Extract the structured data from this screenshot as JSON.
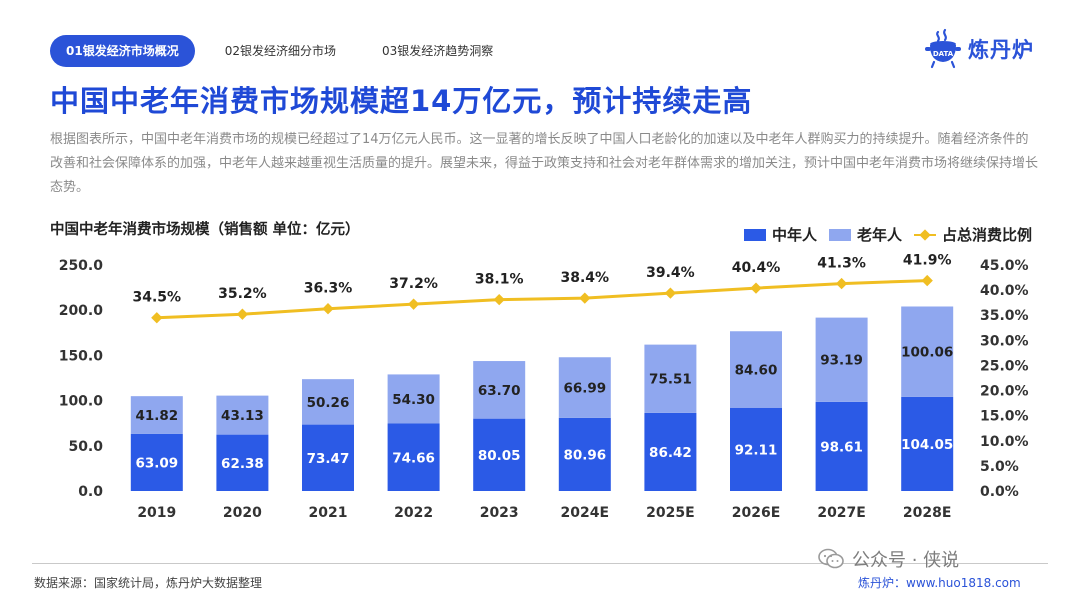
{
  "tabs": [
    {
      "label": "01银发经济市场概况",
      "active": true
    },
    {
      "label": "02银发经济细分市场",
      "active": false
    },
    {
      "label": "03银发经济趋势洞察",
      "active": false
    }
  ],
  "logo": {
    "badge": "DATA",
    "text": "炼丹炉"
  },
  "title": "中国中老年消费市场规模超14万亿元，预计持续走高",
  "description": "根据图表所示，中国中老年消费市场的规模已经超过了14万亿元人民币。这一显著的增长反映了中国人口老龄化的加速以及中老年人群购买力的持续提升。随着经济条件的改善和社会保障体系的加强，中老年人越来越重视生活质量的提升。展望未来，得益于政策支持和社会对老年群体需求的增加关注，预计中国中老年消费市场将继续保持增长态势。",
  "footer": {
    "source": "数据来源：国家统计局，炼丹炉大数据整理",
    "watermark": "公众号 · 侠说",
    "credit": "炼丹炉：www.huo1818.com"
  },
  "colors": {
    "accent": "#2b53d8",
    "middle_aged": "#2b5ae6",
    "elderly": "#8fa7ef",
    "ratio_line": "#f0be22"
  },
  "chart_data": {
    "type": "bar",
    "stacked": true,
    "title": "中国中老年消费市场规模（销售额  单位：亿元）",
    "categories": [
      "2019",
      "2020",
      "2021",
      "2022",
      "2023",
      "2024E",
      "2025E",
      "2026E",
      "2027E",
      "2028E"
    ],
    "series": [
      {
        "name": "中年人",
        "values": [
          63.09,
          62.38,
          73.47,
          74.66,
          80.05,
          80.96,
          86.42,
          92.11,
          98.61,
          104.05
        ],
        "color": "#2b5ae6"
      },
      {
        "name": "老年人",
        "values": [
          41.82,
          43.13,
          50.26,
          54.3,
          63.7,
          66.99,
          75.51,
          84.6,
          93.19,
          100.06
        ],
        "color": "#8fa7ef"
      }
    ],
    "line_series": {
      "name": "占总消费比例",
      "values": [
        34.5,
        35.2,
        36.3,
        37.2,
        38.1,
        38.4,
        39.4,
        40.4,
        41.3,
        41.9
      ],
      "color": "#f0be22"
    },
    "y_ticks": [
      "0.0",
      "50.0",
      "100.0",
      "150.0",
      "200.0",
      "250.0"
    ],
    "y_right_ticks": [
      "0.0%",
      "5.0%",
      "10.0%",
      "15.0%",
      "20.0%",
      "25.0%",
      "30.0%",
      "35.0%",
      "40.0%",
      "45.0%"
    ],
    "ylim": [
      0,
      250
    ],
    "y2lim": [
      0,
      45
    ],
    "grid": false,
    "legend": "top-right"
  }
}
